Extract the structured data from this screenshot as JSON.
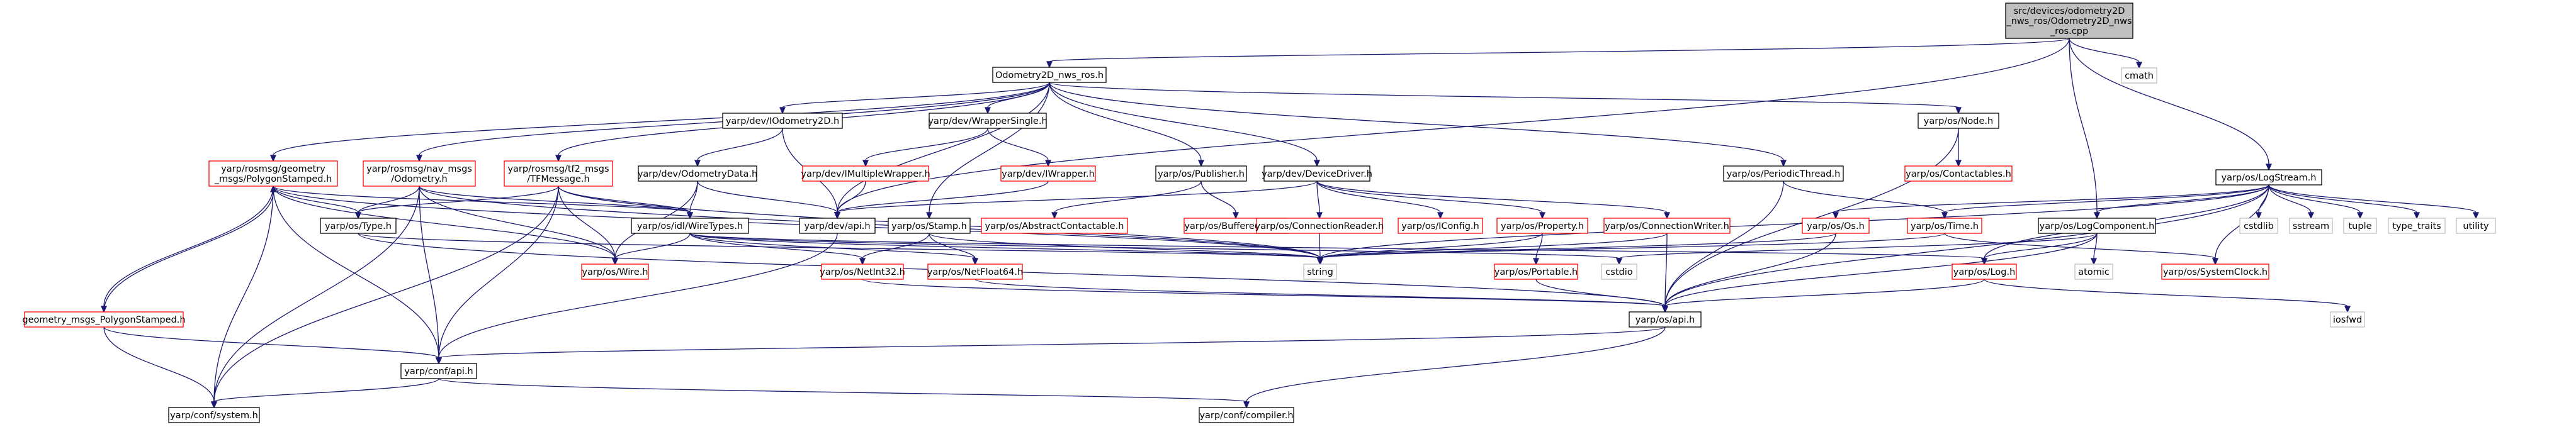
{
  "colors": {
    "background": "#ffffff",
    "root_fill": "#bfbfbf",
    "node_fill": "#ffffff",
    "node_border": "#000000",
    "node_border_external": "#ff0000",
    "node_border_system": "#bfbfbf",
    "edge_color": "#191970"
  },
  "nodes": [
    {
      "id": "root",
      "lines": [
        "src/devices/odometry2D",
        "_nws_ros/Odometry2D_nws",
        "_ros.cpp"
      ],
      "kind": "root"
    },
    {
      "id": "odo_h",
      "lines": [
        "Odometry2D_nws_ros.h"
      ],
      "kind": "normal"
    },
    {
      "id": "cmath",
      "lines": [
        "cmath"
      ],
      "kind": "system"
    },
    {
      "id": "logstream",
      "lines": [
        "yarp/os/LogStream.h"
      ],
      "kind": "normal"
    },
    {
      "id": "iodo",
      "lines": [
        "yarp/dev/IOdometry2D.h"
      ],
      "kind": "normal"
    },
    {
      "id": "wrapsingle",
      "lines": [
        "yarp/dev/WrapperSingle.h"
      ],
      "kind": "normal"
    },
    {
      "id": "node",
      "lines": [
        "yarp/os/Node.h"
      ],
      "kind": "normal"
    },
    {
      "id": "polystamped",
      "lines": [
        "yarp/rosmsg/geometry",
        "_msgs/PolygonStamped.h"
      ],
      "kind": "external"
    },
    {
      "id": "navodo",
      "lines": [
        "yarp/rosmsg/nav_msgs",
        "/Odometry.h"
      ],
      "kind": "external"
    },
    {
      "id": "tfmsg",
      "lines": [
        "yarp/rosmsg/tf2_msgs",
        "/TFMessage.h"
      ],
      "kind": "external"
    },
    {
      "id": "odata",
      "lines": [
        "yarp/dev/OdometryData.h"
      ],
      "kind": "normal"
    },
    {
      "id": "imultiw",
      "lines": [
        "yarp/dev/IMultipleWrapper.h"
      ],
      "kind": "external"
    },
    {
      "id": "iwrapper",
      "lines": [
        "yarp/dev/IWrapper.h"
      ],
      "kind": "external"
    },
    {
      "id": "publisher",
      "lines": [
        "yarp/os/Publisher.h"
      ],
      "kind": "normal"
    },
    {
      "id": "devdriver",
      "lines": [
        "yarp/dev/DeviceDriver.h"
      ],
      "kind": "normal"
    },
    {
      "id": "periodic",
      "lines": [
        "yarp/os/PeriodicThread.h"
      ],
      "kind": "normal"
    },
    {
      "id": "contactables",
      "lines": [
        "yarp/os/Contactables.h"
      ],
      "kind": "external"
    },
    {
      "id": "ostype",
      "lines": [
        "yarp/os/Type.h"
      ],
      "kind": "normal"
    },
    {
      "id": "idlwire",
      "lines": [
        "yarp/os/idl/WireTypes.h"
      ],
      "kind": "normal"
    },
    {
      "id": "devapi",
      "lines": [
        "yarp/dev/api.h"
      ],
      "kind": "normal"
    },
    {
      "id": "stamp",
      "lines": [
        "yarp/os/Stamp.h"
      ],
      "kind": "normal"
    },
    {
      "id": "abscontact",
      "lines": [
        "yarp/os/AbstractContactable.h"
      ],
      "kind": "external"
    },
    {
      "id": "bufport",
      "lines": [
        "yarp/os/BufferedPort.h"
      ],
      "kind": "external"
    },
    {
      "id": "connreader",
      "lines": [
        "yarp/os/ConnectionReader.h"
      ],
      "kind": "external"
    },
    {
      "id": "iconfig",
      "lines": [
        "yarp/os/IConfig.h"
      ],
      "kind": "external"
    },
    {
      "id": "property",
      "lines": [
        "yarp/os/Property.h"
      ],
      "kind": "external"
    },
    {
      "id": "connwriter",
      "lines": [
        "yarp/os/ConnectionWriter.h"
      ],
      "kind": "external"
    },
    {
      "id": "osos",
      "lines": [
        "yarp/os/Os.h"
      ],
      "kind": "external"
    },
    {
      "id": "ostime",
      "lines": [
        "yarp/os/Time.h"
      ],
      "kind": "external"
    },
    {
      "id": "logcomp",
      "lines": [
        "yarp/os/LogComponent.h"
      ],
      "kind": "normal"
    },
    {
      "id": "cstdlib",
      "lines": [
        "cstdlib"
      ],
      "kind": "system"
    },
    {
      "id": "sstream",
      "lines": [
        "sstream"
      ],
      "kind": "system"
    },
    {
      "id": "tuple",
      "lines": [
        "tuple"
      ],
      "kind": "system"
    },
    {
      "id": "typetraits",
      "lines": [
        "type_traits"
      ],
      "kind": "system"
    },
    {
      "id": "utility",
      "lines": [
        "utility"
      ],
      "kind": "system"
    },
    {
      "id": "wire",
      "lines": [
        "yarp/os/Wire.h"
      ],
      "kind": "external"
    },
    {
      "id": "netint32",
      "lines": [
        "yarp/os/NetInt32.h"
      ],
      "kind": "external"
    },
    {
      "id": "netfloat64",
      "lines": [
        "yarp/os/NetFloat64.h"
      ],
      "kind": "external"
    },
    {
      "id": "string",
      "lines": [
        "string"
      ],
      "kind": "system"
    },
    {
      "id": "portable",
      "lines": [
        "yarp/os/Portable.h"
      ],
      "kind": "external"
    },
    {
      "id": "cstdio",
      "lines": [
        "cstdio"
      ],
      "kind": "system"
    },
    {
      "id": "oslog",
      "lines": [
        "yarp/os/Log.h"
      ],
      "kind": "external"
    },
    {
      "id": "atomic",
      "lines": [
        "atomic"
      ],
      "kind": "system"
    },
    {
      "id": "sysclock",
      "lines": [
        "yarp/os/SystemClock.h"
      ],
      "kind": "external"
    },
    {
      "id": "osapi",
      "lines": [
        "yarp/os/api.h"
      ],
      "kind": "normal"
    },
    {
      "id": "iosfwd",
      "lines": [
        "iosfwd"
      ],
      "kind": "system"
    },
    {
      "id": "gmpoly",
      "lines": [
        "geometry_msgs_PolygonStamped.h"
      ],
      "kind": "external"
    },
    {
      "id": "confapi",
      "lines": [
        "yarp/conf/api.h"
      ],
      "kind": "normal"
    },
    {
      "id": "confsystem",
      "lines": [
        "yarp/conf/system.h"
      ],
      "kind": "normal"
    },
    {
      "id": "confcompiler",
      "lines": [
        "yarp/conf/compiler.h"
      ],
      "kind": "normal"
    }
  ],
  "edges": [
    [
      "root",
      "odo_h"
    ],
    [
      "root",
      "cmath"
    ],
    [
      "root",
      "logstream"
    ],
    [
      "root",
      "devapi"
    ],
    [
      "root",
      "logcomp"
    ],
    [
      "odo_h",
      "iodo"
    ],
    [
      "odo_h",
      "wrapsingle"
    ],
    [
      "odo_h",
      "node"
    ],
    [
      "odo_h",
      "polystamped"
    ],
    [
      "odo_h",
      "navodo"
    ],
    [
      "odo_h",
      "tfmsg"
    ],
    [
      "odo_h",
      "publisher"
    ],
    [
      "odo_h",
      "devdriver"
    ],
    [
      "odo_h",
      "periodic"
    ],
    [
      "odo_h",
      "stamp"
    ],
    [
      "odo_h",
      "devapi"
    ],
    [
      "iodo",
      "odata"
    ],
    [
      "iodo",
      "devapi"
    ],
    [
      "odata",
      "idlwire"
    ],
    [
      "odata",
      "wire"
    ],
    [
      "odata",
      "devapi"
    ],
    [
      "wrapsingle",
      "imultiw"
    ],
    [
      "wrapsingle",
      "iwrapper"
    ],
    [
      "imultiw",
      "devapi"
    ],
    [
      "iwrapper",
      "devapi"
    ],
    [
      "node",
      "contactables"
    ],
    [
      "node",
      "osapi"
    ],
    [
      "publisher",
      "abscontact"
    ],
    [
      "publisher",
      "bufport"
    ],
    [
      "devdriver",
      "connreader"
    ],
    [
      "devdriver",
      "iconfig"
    ],
    [
      "devdriver",
      "property"
    ],
    [
      "devdriver",
      "connwriter"
    ],
    [
      "devdriver",
      "devapi"
    ],
    [
      "periodic",
      "ostime"
    ],
    [
      "periodic",
      "osapi"
    ],
    [
      "polystamped",
      "ostype"
    ],
    [
      "polystamped",
      "idlwire"
    ],
    [
      "polystamped",
      "wire"
    ],
    [
      "polystamped",
      "gmpoly"
    ],
    [
      "polystamped",
      "string"
    ],
    [
      "polystamped",
      "confapi"
    ],
    [
      "polystamped",
      "confsystem"
    ],
    [
      "navodo",
      "ostype"
    ],
    [
      "navodo",
      "idlwire"
    ],
    [
      "navodo",
      "wire"
    ],
    [
      "navodo",
      "string"
    ],
    [
      "navodo",
      "confapi"
    ],
    [
      "navodo",
      "confsystem"
    ],
    [
      "tfmsg",
      "ostype"
    ],
    [
      "tfmsg",
      "idlwire"
    ],
    [
      "tfmsg",
      "wire"
    ],
    [
      "tfmsg",
      "string"
    ],
    [
      "tfmsg",
      "confapi"
    ],
    [
      "tfmsg",
      "confsystem"
    ],
    [
      "ostype",
      "string"
    ],
    [
      "ostype",
      "osapi"
    ],
    [
      "idlwire",
      "wire"
    ],
    [
      "idlwire",
      "netint32"
    ],
    [
      "idlwire",
      "netfloat64"
    ],
    [
      "idlwire",
      "string"
    ],
    [
      "idlwire",
      "oslog"
    ],
    [
      "idlwire",
      "cstdio"
    ],
    [
      "stamp",
      "netint32"
    ],
    [
      "stamp",
      "netfloat64"
    ],
    [
      "stamp",
      "string"
    ],
    [
      "devapi",
      "confapi"
    ],
    [
      "connreader",
      "string"
    ],
    [
      "connwriter",
      "string"
    ],
    [
      "connwriter",
      "osapi"
    ],
    [
      "property",
      "string"
    ],
    [
      "property",
      "portable"
    ],
    [
      "osos",
      "string"
    ],
    [
      "osos",
      "osapi"
    ],
    [
      "ostime",
      "string"
    ],
    [
      "ostime",
      "sysclock"
    ],
    [
      "logstream",
      "cstdlib"
    ],
    [
      "logstream",
      "sstream"
    ],
    [
      "logstream",
      "tuple"
    ],
    [
      "logstream",
      "typetraits"
    ],
    [
      "logstream",
      "utility"
    ],
    [
      "logstream",
      "osos"
    ],
    [
      "logstream",
      "ostime"
    ],
    [
      "logstream",
      "logcomp"
    ],
    [
      "logstream",
      "oslog"
    ],
    [
      "logstream",
      "osapi"
    ],
    [
      "logstream",
      "string"
    ],
    [
      "logstream",
      "sysclock"
    ],
    [
      "logcomp",
      "atomic"
    ],
    [
      "logcomp",
      "oslog"
    ],
    [
      "logcomp",
      "osapi"
    ],
    [
      "logcomp",
      "cstdio"
    ],
    [
      "oslog",
      "osapi"
    ],
    [
      "oslog",
      "iosfwd"
    ],
    [
      "netint32",
      "osapi"
    ],
    [
      "netfloat64",
      "osapi"
    ],
    [
      "portable",
      "osapi"
    ],
    [
      "osapi",
      "confapi"
    ],
    [
      "osapi",
      "confcompiler"
    ],
    [
      "gmpoly",
      "confapi"
    ],
    [
      "gmpoly",
      "confsystem"
    ],
    [
      "gmpoly",
      "polystamped"
    ],
    [
      "confapi",
      "confsystem"
    ],
    [
      "confapi",
      "confcompiler"
    ]
  ]
}
